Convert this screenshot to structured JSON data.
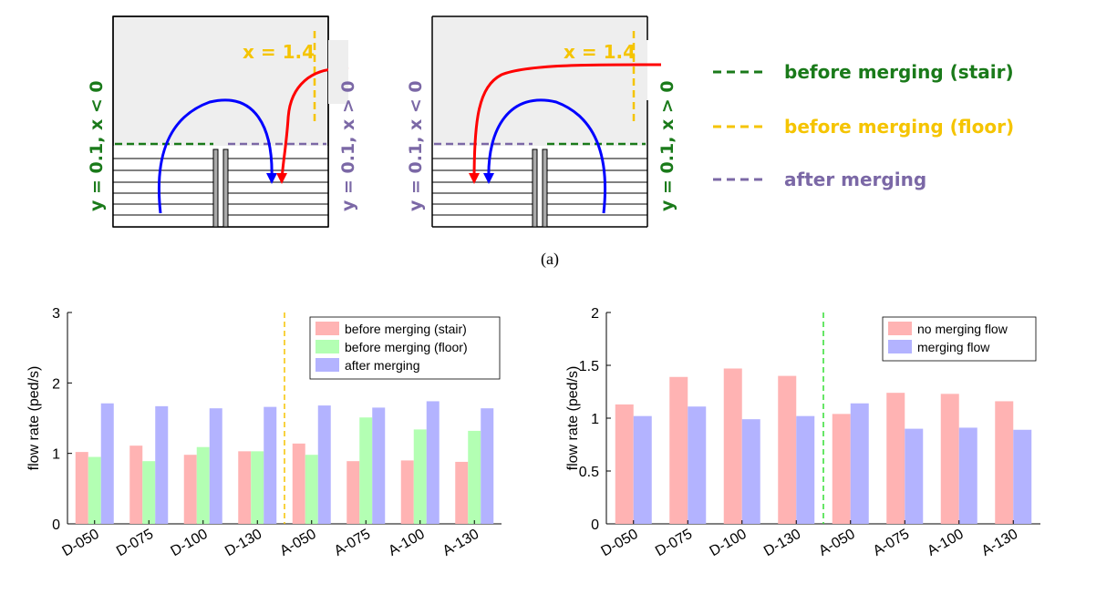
{
  "diagram": {
    "left_labels": {
      "x_line": "x = 1.4",
      "left_vertical": "y = 0.1, x < 0",
      "right_vertical": "y = 0.1, x > 0"
    },
    "right_labels": {
      "x_line": "x = 1.4",
      "left_vertical": "y = 0.1, x < 0",
      "right_vertical": "y = 0.1, x > 0"
    },
    "legend": [
      {
        "label": "before merging (stair)",
        "color": "#1a7a1a"
      },
      {
        "label": "before merging (floor)",
        "color": "#f5c400"
      },
      {
        "label": "after merging",
        "color": "#7b68a6"
      }
    ],
    "caption": "(a)",
    "colors": {
      "stair_line": "#1a7a1a",
      "floor_line": "#f5c400",
      "after_line": "#7b68a6",
      "blue_path": "#0000ff",
      "red_path": "#ff0000"
    }
  },
  "chart_data": [
    {
      "type": "bar",
      "categories": [
        "D-050",
        "D-075",
        "D-100",
        "D-130",
        "A-050",
        "A-075",
        "A-100",
        "A-130"
      ],
      "series": [
        {
          "name": "before merging (stair)",
          "color": "#ffb3b3",
          "values": [
            1.02,
            1.11,
            0.98,
            1.03,
            1.14,
            0.89,
            0.9,
            0.88
          ]
        },
        {
          "name": "before merging (floor)",
          "color": "#b3ffb3",
          "values": [
            0.95,
            0.89,
            1.09,
            1.03,
            0.98,
            1.51,
            1.34,
            1.32
          ]
        },
        {
          "name": "after merging",
          "color": "#b3b3ff",
          "values": [
            1.71,
            1.67,
            1.64,
            1.66,
            1.68,
            1.65,
            1.74,
            1.64
          ]
        }
      ],
      "ylabel": "flow rate (ped/s)",
      "ylim": [
        0,
        3
      ],
      "yticks": [
        "0",
        "1",
        "2",
        "3"
      ],
      "divider_color": "#f5c400",
      "legend_placement": "top-right"
    },
    {
      "type": "bar",
      "categories": [
        "D-050",
        "D-075",
        "D-100",
        "D-130",
        "A-050",
        "A-075",
        "A-100",
        "A-130"
      ],
      "series": [
        {
          "name": "no merging flow",
          "color": "#ffb3b3",
          "values": [
            1.13,
            1.39,
            1.47,
            1.4,
            1.04,
            1.24,
            1.23,
            1.16
          ]
        },
        {
          "name": "merging flow",
          "color": "#b3b3ff",
          "values": [
            1.02,
            1.11,
            0.99,
            1.02,
            1.14,
            0.9,
            0.91,
            0.89
          ]
        }
      ],
      "ylabel": "flow rate (ped/s)",
      "ylim": [
        0,
        2
      ],
      "yticks": [
        "0",
        "0.5",
        "1",
        "1.5",
        "2"
      ],
      "divider_color": "#33dd33",
      "legend_placement": "top-right"
    }
  ]
}
